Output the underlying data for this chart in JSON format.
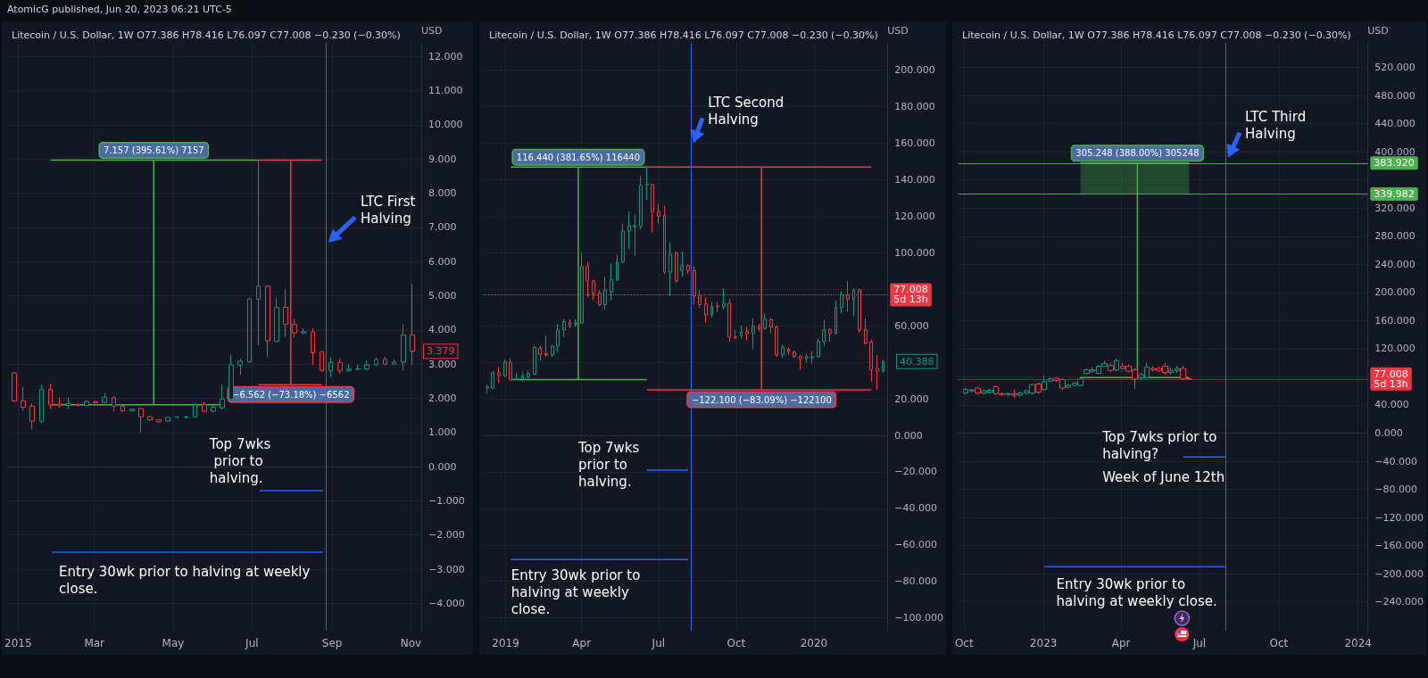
{
  "chart_data": [
    {
      "type": "candlestick",
      "title": "Litecoin / U.S. Dollar, 1W O77.386 H78.416 L76.097 C77.008 −0.230 (−0.30%)",
      "ylabel": "USD",
      "x": [
        "2014-12-29",
        "2015-01-05",
        "2015-01-12",
        "2015-01-19",
        "2015-01-26",
        "2015-02-02",
        "2015-02-09",
        "2015-02-16",
        "2015-02-23",
        "2015-03-02",
        "2015-03-09",
        "2015-03-16",
        "2015-03-23",
        "2015-03-30",
        "2015-04-06",
        "2015-04-13",
        "2015-04-20",
        "2015-04-27",
        "2015-05-04",
        "2015-05-11",
        "2015-05-18",
        "2015-05-25",
        "2015-06-01",
        "2015-06-08",
        "2015-06-15",
        "2015-06-22",
        "2015-06-29",
        "2015-07-06",
        "2015-07-13",
        "2015-07-20",
        "2015-07-27",
        "2015-08-03",
        "2015-08-10",
        "2015-08-17",
        "2015-08-24",
        "2015-08-31",
        "2015-09-07",
        "2015-09-14",
        "2015-09-21",
        "2015-09-28",
        "2015-10-05",
        "2015-10-12",
        "2015-10-19",
        "2015-10-26",
        "2015-11-02"
      ],
      "ohlc": [
        [
          2.74,
          2.76,
          1.9,
          1.92
        ],
        [
          1.92,
          2.33,
          1.63,
          1.74
        ],
        [
          1.77,
          1.85,
          1.1,
          1.33
        ],
        [
          1.33,
          2.39,
          1.27,
          2.27
        ],
        [
          2.26,
          2.42,
          1.68,
          1.81
        ],
        [
          1.83,
          2.02,
          1.72,
          1.79
        ],
        [
          1.79,
          2.02,
          1.68,
          1.85
        ],
        [
          1.82,
          1.85,
          1.77,
          1.8
        ],
        [
          1.79,
          1.93,
          1.77,
          1.91
        ],
        [
          1.9,
          1.93,
          1.85,
          1.87
        ],
        [
          1.88,
          2.15,
          1.86,
          2.03
        ],
        [
          2.02,
          2.05,
          1.62,
          1.77
        ],
        [
          1.77,
          1.8,
          1.6,
          1.63
        ],
        [
          1.63,
          1.69,
          1.62,
          1.68
        ],
        [
          1.7,
          1.72,
          1.0,
          1.46
        ],
        [
          1.46,
          1.48,
          1.33,
          1.37
        ],
        [
          1.37,
          1.39,
          1.28,
          1.31
        ],
        [
          1.33,
          1.46,
          1.31,
          1.44
        ],
        [
          1.44,
          1.48,
          1.43,
          1.45
        ],
        [
          1.44,
          1.48,
          1.42,
          1.46
        ],
        [
          1.45,
          1.85,
          1.43,
          1.81
        ],
        [
          1.81,
          1.9,
          1.6,
          1.62
        ],
        [
          1.62,
          1.77,
          1.6,
          1.74
        ],
        [
          1.72,
          2.4,
          1.68,
          1.98
        ],
        [
          1.98,
          3.27,
          1.97,
          2.98
        ],
        [
          2.97,
          3.16,
          2.68,
          3.09
        ],
        [
          3.07,
          4.94,
          3.03,
          4.91
        ],
        [
          4.9,
          8.97,
          3.55,
          5.28
        ],
        [
          5.28,
          5.3,
          3.2,
          3.68
        ],
        [
          3.67,
          4.94,
          3.64,
          4.66
        ],
        [
          4.66,
          5.2,
          3.8,
          4.16
        ],
        [
          4.16,
          4.33,
          3.79,
          3.91
        ],
        [
          3.91,
          4.05,
          3.87,
          3.95
        ],
        [
          3.94,
          4.05,
          2.98,
          3.33
        ],
        [
          3.36,
          3.38,
          2.78,
          2.81
        ],
        [
          2.81,
          3.2,
          2.61,
          3.05
        ],
        [
          3.05,
          3.17,
          2.72,
          2.8
        ],
        [
          2.81,
          3.0,
          2.78,
          2.85
        ],
        [
          2.85,
          2.98,
          2.82,
          2.86
        ],
        [
          2.86,
          3.1,
          2.82,
          2.98
        ],
        [
          2.98,
          3.2,
          2.95,
          3.13
        ],
        [
          3.14,
          3.22,
          2.98,
          3.0
        ],
        [
          3.0,
          3.15,
          3.0,
          3.06
        ],
        [
          3.06,
          4.17,
          2.8,
          3.85
        ],
        [
          3.85,
          5.33,
          2.98,
          3.379
        ]
      ],
      "value_labels": [
        null,
        null,
        null,
        null,
        null,
        null,
        null,
        null,
        null,
        null,
        null,
        null,
        null,
        null,
        null,
        null,
        null,
        null,
        null,
        null,
        null,
        null,
        null,
        null,
        null,
        null,
        null,
        null,
        null,
        null,
        null,
        null,
        null,
        null,
        null,
        null,
        null,
        null,
        null,
        null,
        null,
        null,
        null,
        null,
        "3.379"
      ],
      "xlim": [
        "2014-12-24",
        "2015-11-09"
      ],
      "xticks": [
        {
          "value": "2015-01-01",
          "label": "2015"
        },
        {
          "value": "2015-03-01",
          "label": "Mar"
        },
        {
          "value": "2015-05-01",
          "label": "May"
        },
        {
          "value": "2015-07-01",
          "label": "Jul"
        },
        {
          "value": "2015-09-01",
          "label": "Sep"
        },
        {
          "value": "2015-11-01",
          "label": "Nov"
        }
      ],
      "ylim": [
        -4.8,
        12.4
      ],
      "yticks": [
        {
          "value": -4,
          "label": "−4.000"
        },
        {
          "value": -3,
          "label": "−3.000"
        },
        {
          "value": -2,
          "label": "−2.000"
        },
        {
          "value": -1,
          "label": "−1.000"
        },
        {
          "value": 0,
          "label": "0.000"
        },
        {
          "value": 1,
          "label": "1.000"
        },
        {
          "value": 2,
          "label": "2.000"
        },
        {
          "value": 3,
          "label": "3.000"
        },
        {
          "value": 4,
          "label": "4.000"
        },
        {
          "value": 5,
          "label": "5.000"
        },
        {
          "value": 6,
          "label": "6.000"
        },
        {
          "value": 7,
          "label": "7.000"
        },
        {
          "value": 8,
          "label": "8.000"
        },
        {
          "value": 9,
          "label": "9.000"
        },
        {
          "value": 10,
          "label": "10.000"
        },
        {
          "value": 11,
          "label": "11.000"
        },
        {
          "value": 12,
          "label": "12.000"
        }
      ],
      "grid": true,
      "ref_lines": [
        {
          "axis": "x",
          "value": "2015-08-27",
          "color": "#2962ff"
        }
      ],
      "series": [
        {
          "type": "line",
          "color": "#4caf50",
          "x": [
            "2015-01-26",
            "2015-07-06"
          ],
          "values": [
            8.97,
            8.97
          ]
        },
        {
          "type": "line",
          "color": "#4caf50",
          "x": [
            "2015-01-26",
            "2015-06-08"
          ],
          "values": [
            1.81,
            1.81
          ]
        },
        {
          "type": "line",
          "color": "#4caf50",
          "name": "7.157 (395.61%) 7157",
          "x": [
            "2015-04-16",
            "2015-04-16"
          ],
          "values": [
            1.81,
            8.97
          ]
        },
        {
          "type": "line",
          "color": "#f23645",
          "x": [
            "2015-07-06",
            "2015-08-24"
          ],
          "values": [
            8.97,
            8.97
          ]
        },
        {
          "type": "line",
          "color": "#f23645",
          "x": [
            "2015-07-06",
            "2015-08-24"
          ],
          "values": [
            2.4,
            2.4
          ]
        },
        {
          "type": "line",
          "color": "#f23645",
          "name": "−6.562 (−73.18%) −6562",
          "x": [
            "2015-07-31",
            "2015-07-31"
          ],
          "values": [
            8.97,
            2.4
          ]
        },
        {
          "type": "line",
          "color": "#2962ff",
          "x": [
            "2015-08-25",
            "2015-07-07"
          ],
          "values": [
            -0.7,
            -0.7
          ]
        },
        {
          "type": "line",
          "color": "#2962ff",
          "x": [
            "2015-08-25",
            "2015-01-27"
          ],
          "values": [
            -2.5,
            -2.5
          ]
        }
      ],
      "annotations": [
        "LTC First Halving",
        "Top 7wks prior to halving.",
        "Entry 30wk prior to halving at weekly close.",
        "AtomicG published, Jun 20, 2023 06:21 UTC-5"
      ]
    },
    {
      "type": "candlestick",
      "title": "Litecoin / U.S. Dollar, 1W O77.386 H78.416 L76.097 C77.008 −0.230 (−0.30%)",
      "ylabel": "USD",
      "x": [
        "2018-12-10",
        "2018-12-17",
        "2018-12-24",
        "2018-12-31",
        "2019-01-07",
        "2019-01-14",
        "2019-01-21",
        "2019-01-28",
        "2019-02-04",
        "2019-02-11",
        "2019-02-18",
        "2019-02-25",
        "2019-03-04",
        "2019-03-11",
        "2019-03-18",
        "2019-03-25",
        "2019-04-01",
        "2019-04-08",
        "2019-04-15",
        "2019-04-22",
        "2019-04-29",
        "2019-05-06",
        "2019-05-13",
        "2019-05-20",
        "2019-05-27",
        "2019-06-03",
        "2019-06-10",
        "2019-06-17",
        "2019-06-24",
        "2019-07-01",
        "2019-07-08",
        "2019-07-15",
        "2019-07-22",
        "2019-07-29",
        "2019-08-05",
        "2019-08-12",
        "2019-08-19",
        "2019-08-26",
        "2019-09-02",
        "2019-09-09",
        "2019-09-16",
        "2019-09-23",
        "2019-09-30",
        "2019-10-07",
        "2019-10-14",
        "2019-10-21",
        "2019-10-28",
        "2019-11-04",
        "2019-11-11",
        "2019-11-18",
        "2019-11-25",
        "2019-12-02",
        "2019-12-09",
        "2019-12-16",
        "2019-12-23",
        "2019-12-30",
        "2020-01-06",
        "2020-01-13",
        "2020-01-20",
        "2020-01-27",
        "2020-02-03",
        "2020-02-10",
        "2020-02-17",
        "2020-02-24",
        "2020-03-02",
        "2020-03-09",
        "2020-03-16",
        "2020-03-23"
      ],
      "ohlc": [
        [
          26,
          27.8,
          23,
          26.5
        ],
        [
          25.9,
          35.1,
          25.4,
          34.3
        ],
        [
          34.3,
          37.6,
          28.7,
          32.7
        ],
        [
          32.7,
          41.6,
          31.9,
          40.3
        ],
        [
          40,
          42.4,
          30.3,
          30.3
        ],
        [
          30.5,
          34,
          30,
          31.2
        ],
        [
          30.8,
          35,
          29.5,
          32.7
        ],
        [
          31.9,
          35.5,
          31,
          33.9
        ],
        [
          33.5,
          48.9,
          33,
          48.1
        ],
        [
          47.8,
          48.9,
          40.8,
          44.4
        ],
        [
          44.8,
          54.6,
          43,
          44
        ],
        [
          44,
          49.7,
          43,
          48.9
        ],
        [
          48.9,
          61,
          45.7,
          57.8
        ],
        [
          57.8,
          64,
          53.7,
          62.3
        ],
        [
          62,
          63.5,
          58.6,
          60.2
        ],
        [
          60.9,
          63.5,
          59.4,
          61.5
        ],
        [
          61.3,
          99.9,
          61,
          92.6
        ],
        [
          92.6,
          95,
          75.6,
          84.5
        ],
        [
          84.5,
          85.3,
          74,
          78
        ],
        [
          78,
          79.6,
          70.7,
          71.6
        ],
        [
          71.6,
          86.9,
          69.1,
          79.6
        ],
        [
          78.8,
          94.2,
          74,
          85.3
        ],
        [
          85,
          99,
          84.5,
          95
        ],
        [
          95,
          116,
          94.2,
          112
        ],
        [
          112,
          122.5,
          102,
          114.7
        ],
        [
          114.2,
          121,
          98.3,
          114.8
        ],
        [
          114.4,
          142,
          112.8,
          137
        ],
        [
          137.4,
          147,
          129,
          137.6
        ],
        [
          137.4,
          137.9,
          111,
          122.5
        ],
        [
          122.5,
          126.6,
          116,
          120
        ],
        [
          120.5,
          125.8,
          88.5,
          89.4
        ],
        [
          89.4,
          105.5,
          76.4,
          99.1
        ],
        [
          99.9,
          100.7,
          83.7,
          84.5
        ],
        [
          90.2,
          100.7,
          87,
          92.9
        ],
        [
          92.9,
          94,
          88.5,
          90.2
        ],
        [
          90.2,
          92.6,
          71.6,
          76.4
        ],
        [
          76.4,
          79.6,
          70,
          71.6
        ],
        [
          72,
          75.6,
          61.8,
          65.9
        ],
        [
          65.9,
          73.2,
          64.3,
          70.7
        ],
        [
          70.9,
          73.2,
          67.5,
          70.4
        ],
        [
          70.4,
          80.5,
          69,
          72.4
        ],
        [
          72.4,
          74.8,
          51.3,
          53.8
        ],
        [
          53.8,
          57.8,
          52.9,
          53.4
        ],
        [
          54.6,
          60.2,
          53,
          56.6
        ],
        [
          57,
          59.4,
          52,
          55.8
        ],
        [
          55.8,
          64.3,
          47.3,
          59.9
        ],
        [
          59.4,
          61,
          57,
          58.4
        ],
        [
          58.6,
          66.7,
          57.8,
          63.5
        ],
        [
          63.5,
          64.3,
          56,
          59.4
        ],
        [
          59.4,
          60.2,
          43,
          44
        ],
        [
          44,
          49.7,
          42.4,
          48.1
        ],
        [
          47.3,
          48.1,
          44,
          45.7
        ],
        [
          45.7,
          46.5,
          42.4,
          43.2
        ],
        [
          43.2,
          44,
          35.9,
          41.9
        ],
        [
          41.9,
          44.8,
          40,
          43.2
        ],
        [
          42.4,
          46,
          39.2,
          43
        ],
        [
          43.2,
          52.9,
          42.4,
          51.3
        ],
        [
          51.3,
          63.5,
          48.9,
          57.8
        ],
        [
          57.8,
          58.6,
          51.3,
          55.8
        ],
        [
          55.8,
          74,
          55.4,
          69.9
        ],
        [
          70,
          78.8,
          66.7,
          76.9
        ],
        [
          76.9,
          84.5,
          67.5,
          74.5
        ],
        [
          74.5,
          80.5,
          65.1,
          79.6
        ],
        [
          79.6,
          80.1,
          56.2,
          57.8
        ],
        [
          57.8,
          64,
          49.7,
          50.5
        ],
        [
          51.3,
          52.6,
          29.5,
          36
        ],
        [
          36.7,
          44,
          24.9,
          35.1
        ],
        [
          35.1,
          41.6,
          34.3,
          40.388
        ]
      ],
      "value_labels": [
        null,
        null,
        null,
        null,
        null,
        null,
        null,
        null,
        null,
        null,
        null,
        null,
        null,
        null,
        null,
        null,
        null,
        null,
        null,
        null,
        null,
        null,
        null,
        null,
        null,
        null,
        null,
        null,
        null,
        null,
        null,
        null,
        null,
        null,
        null,
        null,
        null,
        null,
        null,
        null,
        null,
        null,
        null,
        null,
        null,
        null,
        null,
        null,
        null,
        null,
        null,
        null,
        null,
        null,
        null,
        null,
        null,
        null,
        null,
        null,
        null,
        null,
        null,
        null,
        null,
        null,
        null,
        "40.388"
      ],
      "xlim": [
        "2018-12-05",
        "2020-03-28"
      ],
      "xticks": [
        {
          "value": "2019-01-01",
          "label": "2019"
        },
        {
          "value": "2019-04-01",
          "label": "Apr"
        },
        {
          "value": "2019-07-01",
          "label": "Jul"
        },
        {
          "value": "2019-10-01",
          "label": "Oct"
        },
        {
          "value": "2020-01-01",
          "label": "2020"
        }
      ],
      "ylim": [
        -107,
        215
      ],
      "yticks": [
        {
          "value": -100,
          "label": "−100.000"
        },
        {
          "value": -80,
          "label": "−80.000"
        },
        {
          "value": -60,
          "label": "−60.000"
        },
        {
          "value": -40,
          "label": "−40.000"
        },
        {
          "value": -20,
          "label": "−20.000"
        },
        {
          "value": 0,
          "label": "0.000"
        },
        {
          "value": 20,
          "label": "20.000"
        },
        {
          "value": 40,
          "label": null
        },
        {
          "value": 60,
          "label": "60.000"
        },
        {
          "value": 80,
          "label": null
        },
        {
          "value": 100,
          "label": "100.000"
        },
        {
          "value": 120,
          "label": "120.000"
        },
        {
          "value": 140,
          "label": "140.000"
        },
        {
          "value": 160,
          "label": "160.000"
        },
        {
          "value": 180,
          "label": "180.000"
        },
        {
          "value": 200,
          "label": "200.000"
        }
      ],
      "grid": true,
      "ref_lines": [
        {
          "axis": "x",
          "value": "2019-08-08",
          "color": "#2962ff"
        },
        {
          "axis": "y",
          "value": 77.008,
          "label": "77.008\n5d 13h",
          "color": "#f23645",
          "line_style": "dotted"
        }
      ],
      "series": [
        {
          "type": "line",
          "color": "#4caf50",
          "x": [
            "2019-01-07",
            "2019-06-17"
          ],
          "values": [
            147,
            147
          ]
        },
        {
          "type": "line",
          "color": "#4caf50",
          "x": [
            "2019-01-07",
            "2019-06-17"
          ],
          "values": [
            30.5,
            30.5
          ]
        },
        {
          "type": "line",
          "color": "#4caf50",
          "name": "116.440 (381.65%) 116440",
          "x": [
            "2019-03-28",
            "2019-03-28"
          ],
          "values": [
            30.5,
            147
          ]
        },
        {
          "type": "line",
          "color": "#f23645",
          "x": [
            "2019-06-17",
            "2020-03-09"
          ],
          "values": [
            147,
            147
          ]
        },
        {
          "type": "line",
          "color": "#f23645",
          "x": [
            "2019-06-17",
            "2020-03-09"
          ],
          "values": [
            24.9,
            24.9
          ]
        },
        {
          "type": "line",
          "color": "#f23645",
          "name": "−122.100 (−83.09%) −122100",
          "x": [
            "2019-10-31",
            "2019-10-31"
          ],
          "values": [
            147,
            24.9
          ]
        },
        {
          "type": "line",
          "color": "#2962ff",
          "x": [
            "2019-08-05",
            "2019-06-17"
          ],
          "values": [
            -19,
            -19
          ]
        },
        {
          "type": "line",
          "color": "#2962ff",
          "x": [
            "2019-08-05",
            "2019-01-07"
          ],
          "values": [
            -68,
            -68
          ]
        }
      ],
      "annotations": [
        "LTC Second Halving",
        "Top 7wks prior to halving.",
        "Entry 30wk prior to halving at weekly close."
      ]
    },
    {
      "type": "candlestick",
      "title": "Litecoin / U.S. Dollar, 1W O77.386 H78.416 L76.097 C77.008 −0.230 (−0.30%)",
      "ylabel": "USD",
      "x": [
        "2022-10-03",
        "2022-10-10",
        "2022-10-17",
        "2022-10-24",
        "2022-10-31",
        "2022-11-07",
        "2022-11-14",
        "2022-11-21",
        "2022-11-28",
        "2022-12-05",
        "2022-12-12",
        "2022-12-19",
        "2022-12-26",
        "2023-01-02",
        "2023-01-09",
        "2023-01-16",
        "2023-01-23",
        "2023-01-30",
        "2023-02-06",
        "2023-02-13",
        "2023-02-20",
        "2023-02-27",
        "2023-03-06",
        "2023-03-13",
        "2023-03-20",
        "2023-03-27",
        "2023-04-03",
        "2023-04-10",
        "2023-04-17",
        "2023-04-24",
        "2023-05-01",
        "2023-05-08",
        "2023-05-15",
        "2023-05-22",
        "2023-05-29",
        "2023-06-05",
        "2023-06-12",
        "2023-06-19"
      ],
      "ohlc": [
        [
          57,
          64,
          55,
          62
        ],
        [
          60,
          63,
          58,
          61
        ],
        [
          64,
          66,
          55,
          57
        ],
        [
          57,
          62,
          55,
          60
        ],
        [
          58,
          63,
          56,
          61
        ],
        [
          66,
          68,
          54,
          56
        ],
        [
          56,
          58,
          53,
          55
        ],
        [
          55,
          58,
          52,
          56
        ],
        [
          56,
          62,
          50,
          54
        ],
        [
          54,
          59,
          52,
          57
        ],
        [
          57,
          62,
          55,
          60
        ],
        [
          57,
          70,
          55,
          69
        ],
        [
          70,
          72,
          56,
          58
        ],
        [
          62,
          82,
          60,
          73
        ],
        [
          74,
          79,
          73,
          77
        ],
        [
          78,
          80,
          73,
          75
        ],
        [
          76,
          78,
          62,
          64
        ],
        [
          65,
          70,
          64,
          68
        ],
        [
          68,
          72,
          67,
          71
        ],
        [
          68,
          80,
          67,
          77
        ],
        [
          85,
          92,
          84,
          90
        ],
        [
          88,
          94,
          86,
          90
        ],
        [
          85,
          97,
          84,
          95
        ],
        [
          95,
          103,
          94,
          99
        ],
        [
          96,
          100,
          87,
          89
        ],
        [
          90,
          106,
          88,
          103
        ],
        [
          95,
          100,
          90,
          92
        ],
        [
          95,
          98,
          86,
          88
        ],
        [
          90,
          92,
          63,
          77
        ],
        [
          79,
          86,
          76,
          83
        ],
        [
          79,
          100,
          77,
          94
        ],
        [
          92,
          95,
          88,
          90
        ],
        [
          92,
          95,
          87,
          89
        ],
        [
          95,
          100,
          83,
          86
        ],
        [
          86,
          94,
          83,
          89
        ],
        [
          89,
          96,
          85,
          92
        ],
        [
          92,
          96,
          75,
          77.4
        ],
        [
          77.386,
          78.416,
          76.097,
          77.008
        ]
      ],
      "xlim": [
        "2022-09-24",
        "2024-01-12"
      ],
      "xticks": [
        {
          "value": "2022-10-01",
          "label": "Oct"
        },
        {
          "value": "2023-01-01",
          "label": "2023"
        },
        {
          "value": "2023-04-01",
          "label": "Apr"
        },
        {
          "value": "2023-07-01",
          "label": "Jul"
        },
        {
          "value": "2023-10-01",
          "label": "Oct"
        },
        {
          "value": "2024-01-01",
          "label": "2024"
        }
      ],
      "ylim": [
        -281,
        555
      ],
      "yticks": [
        {
          "value": -240,
          "label": "−240.000"
        },
        {
          "value": -200,
          "label": "−200.000"
        },
        {
          "value": -160,
          "label": "−160.000"
        },
        {
          "value": -120,
          "label": "−120.000"
        },
        {
          "value": -80,
          "label": "−80.000"
        },
        {
          "value": -40,
          "label": "−40.000"
        },
        {
          "value": 0,
          "label": "0.000"
        },
        {
          "value": 40,
          "label": "40.000"
        },
        {
          "value": 80,
          "label": null
        },
        {
          "value": 120,
          "label": "120.000"
        },
        {
          "value": 160,
          "label": "160.000"
        },
        {
          "value": 200,
          "label": "200.000"
        },
        {
          "value": 240,
          "label": "240.000"
        },
        {
          "value": 280,
          "label": "280.000"
        },
        {
          "value": 320,
          "label": "320.000"
        },
        {
          "value": 360,
          "label": null
        },
        {
          "value": 400,
          "label": "400.000"
        },
        {
          "value": 440,
          "label": "440.000"
        },
        {
          "value": 480,
          "label": "480.000"
        },
        {
          "value": 520,
          "label": "520.000"
        }
      ],
      "grid": true,
      "ref_lines": [
        {
          "axis": "x",
          "value": "2023-07-31",
          "color": "#2962ff"
        },
        {
          "axis": "y",
          "value": 383.92,
          "label": "383.920",
          "color": "#4caf50"
        },
        {
          "axis": "y",
          "value": 339.982,
          "label": "339.982",
          "color": "#4caf50"
        },
        {
          "axis": "y",
          "value": 77.008,
          "label": "77.008\n5d 13h",
          "color": "#f23645",
          "line_style": "dotted"
        }
      ],
      "series": [
        {
          "type": "line",
          "color": "#4caf50",
          "x": [
            "2023-02-13",
            "2023-06-19"
          ],
          "values": [
            384,
            384
          ],
          "lower": [
            340,
            340
          ],
          "upper": [
            384,
            384
          ]
        },
        {
          "type": "line",
          "color": "#4caf50",
          "x": [
            "2023-02-13",
            "2023-06-19"
          ],
          "values": [
            79,
            79
          ]
        },
        {
          "type": "line",
          "color": "#4caf50",
          "name": "305.248 (388.00%) 305248",
          "x": [
            "2023-04-20",
            "2023-04-20"
          ],
          "values": [
            79,
            384
          ]
        },
        {
          "type": "line",
          "color": "#2962ff",
          "x": [
            "2023-07-31",
            "2023-06-12"
          ],
          "values": [
            -34,
            -34
          ]
        },
        {
          "type": "line",
          "color": "#2962ff",
          "x": [
            "2023-07-31",
            "2023-01-02"
          ],
          "values": [
            -190,
            -190
          ]
        }
      ],
      "annotations": [
        "LTC Third Halving",
        "Top 7wks prior to halving?",
        "Week of June 12th",
        "Entry 30wk prior to halving at weekly close."
      ]
    }
  ]
}
